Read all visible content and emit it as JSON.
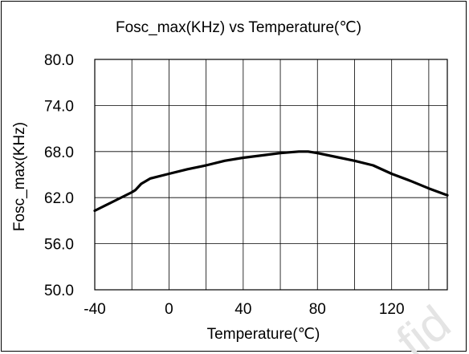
{
  "chart_data": {
    "type": "line",
    "title": "Fosc_max(KHz)  vs Temperature(℃)",
    "xlabel": "Temperature(℃)",
    "ylabel": "Fosc_max(KHz)",
    "xlim": [
      -40,
      150
    ],
    "ylim": [
      50.0,
      80.0
    ],
    "x_ticks": [
      -40,
      0,
      40,
      80,
      120
    ],
    "x_tick_labels": [
      "-40",
      "0",
      "40",
      "80",
      "120"
    ],
    "y_ticks": [
      50.0,
      56.0,
      62.0,
      68.0,
      74.0,
      80.0
    ],
    "y_tick_labels": [
      "50.0",
      "56.0",
      "62.0",
      "68.0",
      "74.0",
      "80.0"
    ],
    "x_gridlines": [
      -40,
      -20,
      0,
      20,
      40,
      60,
      80,
      100,
      120,
      140
    ],
    "y_gridlines": [
      50,
      56,
      62,
      68,
      74,
      80
    ],
    "grid": true,
    "series_color": "#000000",
    "series": [
      {
        "x": [
          -40,
          -30,
          -20,
          -18,
          -15,
          -10,
          0,
          10,
          20,
          30,
          40,
          50,
          60,
          70,
          75,
          80,
          90,
          100,
          110,
          120,
          130,
          140,
          150
        ],
        "y": [
          60.3,
          61.5,
          62.7,
          63.0,
          63.8,
          64.5,
          65.1,
          65.7,
          66.2,
          66.8,
          67.2,
          67.5,
          67.8,
          68.0,
          68.0,
          67.8,
          67.3,
          66.8,
          66.2,
          65.1,
          64.2,
          63.2,
          62.3
        ]
      }
    ]
  }
}
